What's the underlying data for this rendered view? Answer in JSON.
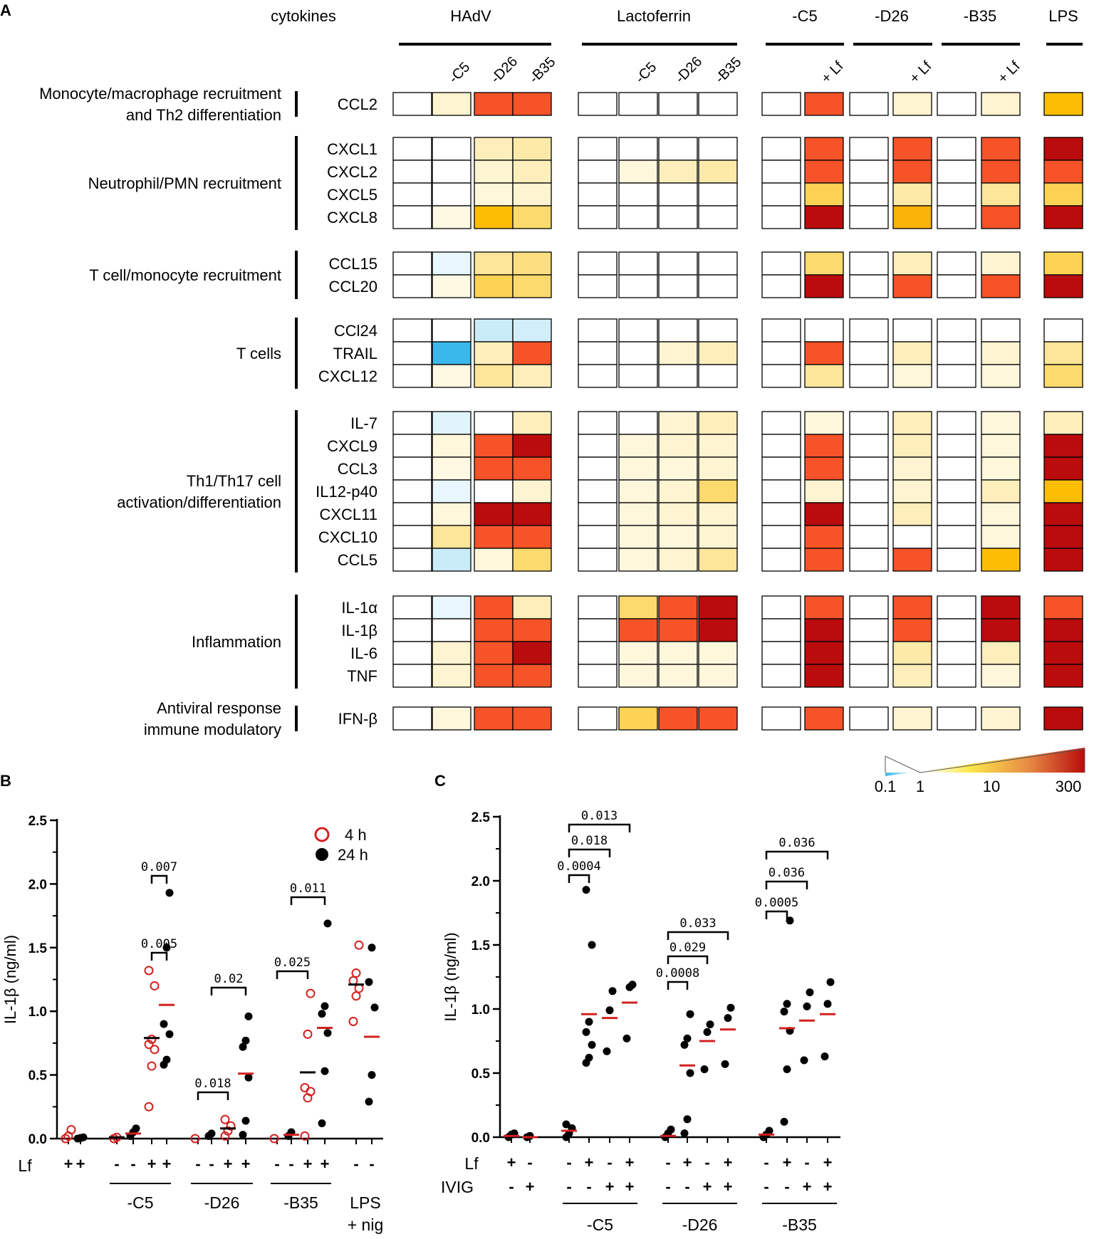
{
  "colors": {
    "blue": "#3bb8ea",
    "light_blue": "#cdeaf6",
    "very_light_blue": "#e6f4fb",
    "red_point": "#d42020",
    "heat_low": "#fff9e6",
    "heat_high": "#b80c0c"
  },
  "panel_a": {
    "letter": "A",
    "header_cytokines": "cytokines",
    "groups": [
      {
        "label": "HAdV",
        "subs": [
          "",
          "-C5",
          "-D26",
          "-B35"
        ]
      },
      {
        "label": "Lactoferrin",
        "subs": [
          "",
          "-C5",
          "-D26",
          "-B35"
        ]
      },
      {
        "label": "-C5",
        "subs": [
          "",
          "+ Lf"
        ]
      },
      {
        "label": "-D26",
        "subs": [
          "",
          "+ Lf"
        ]
      },
      {
        "label": "-B35",
        "subs": [
          "",
          "+ Lf"
        ]
      },
      {
        "label": "LPS",
        "subs": [
          ""
        ]
      }
    ],
    "categories": [
      {
        "label": [
          "Monocyte/macrophage recruitment",
          "and Th2 differentiation"
        ],
        "rows": [
          "CCL2"
        ]
      },
      {
        "label": [
          "Neutrophil/PMN recruitment"
        ],
        "rows": [
          "CXCL1",
          "CXCL2",
          "CXCL5",
          "CXCL8"
        ]
      },
      {
        "label": [
          "T cell/monocyte recruitment"
        ],
        "rows": [
          "CCL15",
          "CCL20"
        ]
      },
      {
        "label": [
          "T cells"
        ],
        "rows": [
          "CCl24",
          "TRAIL",
          "CXCL12"
        ]
      },
      {
        "label": [
          "Th1/Th17 cell",
          "activation/differentiation"
        ],
        "rows": [
          "IL-7",
          "CXCL9",
          "CCL3",
          "IL12-p40",
          "CXCL11",
          "CXCL10",
          "CCL5"
        ]
      },
      {
        "label": [
          "Inflammation"
        ],
        "rows": [
          "IL-1α",
          "IL-1β",
          "IL-6",
          "TNF"
        ]
      },
      {
        "label": [
          "Antiviral response",
          "immune modulatory"
        ],
        "rows": [
          "IFN-β"
        ]
      }
    ],
    "fold_change": {
      "CCL2": [
        1,
        1.5,
        50,
        50,
        1,
        1,
        1,
        1,
        1,
        50,
        1,
        1.5,
        1,
        1.5,
        10
      ],
      "CXCL1": [
        1,
        1,
        2,
        2.5,
        1,
        1,
        1,
        1,
        1,
        50,
        1,
        50,
        1,
        50,
        300
      ],
      "CXCL2": [
        1,
        1,
        1.5,
        2,
        1,
        1.3,
        2,
        2.5,
        1,
        50,
        1,
        50,
        1,
        50,
        50
      ],
      "CXCL5": [
        1,
        1,
        1.3,
        1.5,
        1,
        1,
        1,
        1,
        1,
        6,
        1,
        2.5,
        1,
        3,
        6
      ],
      "CXCL8": [
        1,
        1.2,
        10,
        5,
        1,
        1,
        1,
        1,
        1,
        300,
        1,
        12,
        1,
        50,
        300
      ],
      "CCL15": [
        1,
        0.9,
        3,
        4,
        1,
        1,
        1,
        1,
        1,
        5,
        1,
        2,
        1,
        1.5,
        6
      ],
      "CCL20": [
        1,
        1.2,
        6,
        5,
        1,
        1,
        1,
        1,
        1,
        300,
        1,
        50,
        1,
        50,
        300
      ],
      "CCl24": [
        1,
        1,
        0.7,
        0.75,
        1,
        1,
        1,
        1,
        1,
        1,
        1,
        1,
        1,
        1,
        1
      ],
      "TRAIL": [
        1,
        0.1,
        2,
        50,
        1,
        1,
        1.5,
        2,
        1,
        50,
        1,
        2,
        1,
        1.5,
        3
      ],
      "CXCL12": [
        1,
        1.2,
        3,
        2,
        1,
        1,
        1,
        1,
        1,
        3,
        1,
        1.3,
        1,
        1.3,
        5
      ],
      "IL-7": [
        1,
        0.85,
        1,
        2,
        1,
        1,
        1.5,
        2,
        1,
        1.3,
        1,
        2,
        1,
        1.3,
        2
      ],
      "CXCL9": [
        1,
        1.3,
        50,
        300,
        1,
        1.3,
        1.5,
        1.5,
        1,
        50,
        1,
        2,
        1,
        1.3,
        300
      ],
      "CCL3": [
        1,
        1.2,
        50,
        50,
        1,
        1.3,
        1.3,
        1.5,
        1,
        50,
        1,
        1.5,
        1,
        1.3,
        300
      ],
      "IL12-p40": [
        1,
        0.9,
        1,
        1.5,
        1,
        1.3,
        1.5,
        5,
        1,
        1.5,
        1,
        1.5,
        1,
        2,
        10
      ],
      "CXCL11": [
        1,
        1.3,
        300,
        300,
        1,
        1.3,
        1.5,
        1.5,
        1,
        300,
        1,
        2,
        1,
        1.3,
        300
      ],
      "CXCL10": [
        1,
        3,
        50,
        50,
        1,
        1.3,
        1.3,
        1.5,
        1,
        50,
        1,
        1,
        1,
        1.3,
        300
      ],
      "CCL5": [
        1,
        0.7,
        1.3,
        5,
        1,
        1.3,
        1.5,
        3,
        1,
        50,
        1,
        50,
        1,
        10,
        300
      ],
      "IL-1α": [
        1,
        0.9,
        50,
        2,
        1,
        5,
        50,
        300,
        1,
        50,
        1,
        50,
        1,
        300,
        50
      ],
      "IL-1β": [
        1,
        1,
        50,
        50,
        1,
        50,
        50,
        300,
        1,
        300,
        1,
        50,
        1,
        300,
        300
      ],
      "IL-6": [
        1,
        1.5,
        50,
        300,
        1,
        1.3,
        1.3,
        1.3,
        1,
        300,
        1,
        2.5,
        1,
        2,
        300
      ],
      "TNF": [
        1,
        1.5,
        50,
        50,
        1,
        1.3,
        1.3,
        1.3,
        1,
        300,
        1,
        2,
        1,
        1.3,
        300
      ],
      "IFN-β": [
        1,
        1.3,
        50,
        50,
        1,
        6,
        50,
        50,
        1,
        50,
        1,
        1.5,
        1,
        1.5,
        300
      ]
    },
    "legend_ticks": [
      "0.1",
      "1",
      "10",
      "300"
    ]
  },
  "chart_data": [
    {
      "type": "heatmap",
      "panel": "A",
      "value_meaning": "fold change relative to mock (log scale 0.1 to 300)",
      "columns": [
        "HAdV mock",
        "HAdV-C5",
        "HAdV-D26",
        "HAdV-B35",
        "Lactoferrin mock",
        "Lactoferrin -C5",
        "Lactoferrin -D26",
        "Lactoferrin -B35",
        "-C5",
        "-C5 + Lf",
        "-D26",
        "-D26 + Lf",
        "-B35",
        "-B35 + Lf",
        "LPS"
      ]
    },
    {
      "type": "scatter",
      "panel": "B",
      "letter": "B",
      "ylabel": "IL-1β (ng/ml)",
      "ylim": [
        0,
        2.5
      ],
      "yticks": [
        "0.0",
        "0.5",
        "1.0",
        "1.5",
        "2.0",
        "2.5"
      ],
      "legend": [
        {
          "name": "4 h",
          "style": "open-red"
        },
        {
          "name": "24 h",
          "style": "filled-black"
        }
      ],
      "row_label": "Lf",
      "columns": [
        {
          "lf": "+",
          "series": "4 h",
          "values": [
            0.0,
            0.02,
            0.07
          ],
          "mean": null
        },
        {
          "lf": "+",
          "series": "24 h",
          "values": [
            0.0,
            0.005,
            0.01
          ],
          "mean": null
        },
        {
          "lf": "-",
          "series": "4 h",
          "values": [
            0.0,
            0.01
          ],
          "mean": 0.01
        },
        {
          "lf": "-",
          "series": "24 h",
          "values": [
            0.02,
            0.05,
            0.08
          ],
          "mean": 0.04
        },
        {
          "lf": "+",
          "series": "4 h",
          "values": [
            0.25,
            0.57,
            0.7,
            0.74,
            0.78,
            1.2,
            1.32
          ],
          "mean": 0.79
        },
        {
          "lf": "+",
          "series": "24 h",
          "values": [
            0.58,
            0.62,
            0.82,
            0.9,
            1.5,
            1.93
          ],
          "mean": 1.05
        },
        {
          "lf": "-",
          "series": "4 h",
          "values": [
            0.0
          ],
          "mean": null
        },
        {
          "lf": "-",
          "series": "24 h",
          "values": [
            0.02,
            0.04
          ],
          "mean": null
        },
        {
          "lf": "+",
          "series": "4 h",
          "values": [
            0.02,
            0.06,
            0.1,
            0.15
          ],
          "mean": 0.08
        },
        {
          "lf": "+",
          "series": "24 h",
          "values": [
            0.03,
            0.14,
            0.48,
            0.72,
            0.77,
            0.96
          ],
          "mean": 0.51
        },
        {
          "lf": "-",
          "series": "4 h",
          "values": [
            0.0
          ],
          "mean": null
        },
        {
          "lf": "-",
          "series": "24 h",
          "values": [
            0.02,
            0.05
          ],
          "mean": 0.03
        },
        {
          "lf": "+",
          "series": "4 h",
          "values": [
            0.02,
            0.32,
            0.37,
            0.4,
            0.82,
            1.14
          ],
          "mean": 0.52
        },
        {
          "lf": "+",
          "series": "24 h",
          "values": [
            0.12,
            0.53,
            0.83,
            0.98,
            1.04,
            1.69
          ],
          "mean": 0.87
        },
        {
          "lf": "-",
          "series": "4 h",
          "values": [
            0.92,
            1.12,
            1.18,
            1.24,
            1.3,
            1.52
          ],
          "mean": 1.21
        },
        {
          "lf": "-",
          "series": "24 h",
          "values": [
            0.29,
            0.5,
            1.03,
            1.23,
            1.5
          ],
          "mean": 0.8
        }
      ],
      "groups": [
        "-C5",
        "-D26",
        "-B35",
        "LPS\n+ nig"
      ],
      "brackets": [
        {
          "label": "0.005",
          "from": 4,
          "to": 5
        },
        {
          "label": "0.007",
          "from": 4,
          "to": 5
        },
        {
          "label": "0.018",
          "from": 6,
          "to": 8
        },
        {
          "label": "0.02",
          "from": 7,
          "to": 9
        },
        {
          "label": "0.025",
          "from": 10,
          "to": 12
        },
        {
          "label": "0.011",
          "from": 11,
          "to": 13
        }
      ]
    },
    {
      "type": "scatter",
      "panel": "C",
      "letter": "C",
      "ylabel": "IL-1β (ng/ml)",
      "ylim": [
        0,
        2.5
      ],
      "yticks": [
        "0.0",
        "0.5",
        "1.0",
        "1.5",
        "2.0",
        "2.5"
      ],
      "row_labels": [
        "Lf",
        "IVIG"
      ],
      "columns": [
        {
          "lf": "+",
          "ivig": "-",
          "values": [
            0.0,
            0.02,
            0.03
          ],
          "mean": 0.01
        },
        {
          "lf": "-",
          "ivig": "+",
          "values": [
            0.0,
            0.01
          ],
          "mean": 0.0
        },
        {
          "lf": "-",
          "ivig": "-",
          "values": [
            0.0,
            0.03,
            0.07,
            0.1
          ],
          "mean": 0.05
        },
        {
          "lf": "+",
          "ivig": "-",
          "values": [
            0.58,
            0.62,
            0.72,
            0.82,
            0.9,
            1.5,
            1.93
          ],
          "mean": 0.96
        },
        {
          "lf": "-",
          "ivig": "+",
          "values": [
            0.67,
            0.99,
            1.14
          ],
          "mean": 0.93
        },
        {
          "lf": "+",
          "ivig": "+",
          "values": [
            0.77,
            1.17,
            1.19
          ],
          "mean": 1.05
        },
        {
          "lf": "-",
          "ivig": "-",
          "values": [
            0.0,
            0.03,
            0.06
          ],
          "mean": 0.01
        },
        {
          "lf": "+",
          "ivig": "-",
          "values": [
            0.03,
            0.14,
            0.5,
            0.72,
            0.77,
            0.96
          ],
          "mean": 0.56
        },
        {
          "lf": "-",
          "ivig": "+",
          "values": [
            0.53,
            0.82,
            0.88
          ],
          "mean": 0.75
        },
        {
          "lf": "+",
          "ivig": "+",
          "values": [
            0.57,
            0.93,
            1.01
          ],
          "mean": 0.84
        },
        {
          "lf": "-",
          "ivig": "-",
          "values": [
            0.0,
            0.02,
            0.05
          ],
          "mean": 0.02
        },
        {
          "lf": "+",
          "ivig": "-",
          "values": [
            0.12,
            0.53,
            0.83,
            0.98,
            1.04,
            1.69
          ],
          "mean": 0.85
        },
        {
          "lf": "-",
          "ivig": "+",
          "values": [
            0.6,
            1.02,
            1.13
          ],
          "mean": 0.91
        },
        {
          "lf": "+",
          "ivig": "+",
          "values": [
            0.63,
            1.04,
            1.21
          ],
          "mean": 0.96
        }
      ],
      "groups": [
        "-C5",
        "-D26",
        "-B35"
      ],
      "brackets": [
        {
          "label": "0.0004",
          "from": 2,
          "to": 3
        },
        {
          "label": "0.018",
          "from": 2,
          "to": 4
        },
        {
          "label": "0.013",
          "from": 2,
          "to": 5
        },
        {
          "label": "0.0008",
          "from": 6,
          "to": 7
        },
        {
          "label": "0.029",
          "from": 6,
          "to": 8
        },
        {
          "label": "0.033",
          "from": 6,
          "to": 9
        },
        {
          "label": "0.0005",
          "from": 10,
          "to": 11
        },
        {
          "label": "0.036",
          "from": 10,
          "to": 12
        },
        {
          "label": "0.036",
          "from": 10,
          "to": 13
        }
      ]
    }
  ]
}
